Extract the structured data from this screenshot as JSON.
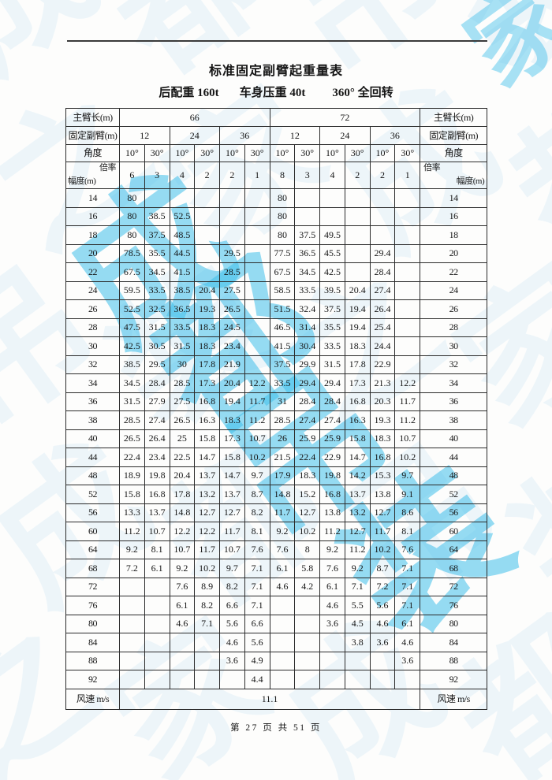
{
  "page": {
    "title": "标准固定副臂起重量表",
    "subtitle_parts": [
      "后配重 160t",
      "车身压重 40t",
      "360° 全回转"
    ],
    "footer": "第 27 页 共 51 页"
  },
  "watermark": {
    "bright_chars": [
      "成",
      "都",
      "吊",
      "装"
    ],
    "corner_char": "家",
    "faint_phrase": "成都吊装之家",
    "bright_color": "#41c0eb",
    "faint_color": "#7dc3eb"
  },
  "table": {
    "labels": {
      "main_boom": "主臂长(m)",
      "fixed_jib": "固定副臂(m)",
      "angle": "角度",
      "ratio": "倍率",
      "radius": "幅度(m)",
      "wind": "风速 m/s"
    },
    "boom_lengths": [
      "66",
      "72"
    ],
    "jib_lengths": [
      "12",
      "24",
      "36",
      "12",
      "24",
      "36"
    ],
    "angles": [
      "10°",
      "30°",
      "10°",
      "30°",
      "10°",
      "30°",
      "10°",
      "30°",
      "10°",
      "30°",
      "10°",
      "30°"
    ],
    "ratios": [
      "6",
      "3",
      "4",
      "2",
      "2",
      "1",
      "8",
      "3",
      "4",
      "2",
      "2",
      "1"
    ],
    "wind_speed": "11.1",
    "rows": [
      {
        "radius": "14",
        "values": [
          "80",
          "",
          "",
          "",
          "",
          "",
          "80",
          "",
          "",
          "",
          "",
          ""
        ]
      },
      {
        "radius": "16",
        "values": [
          "80",
          "38.5",
          "52.5",
          "",
          "",
          "",
          "80",
          "",
          "",
          "",
          "",
          ""
        ]
      },
      {
        "radius": "18",
        "values": [
          "80",
          "37.5",
          "48.5",
          "",
          "",
          "",
          "80",
          "37.5",
          "49.5",
          "",
          "",
          ""
        ]
      },
      {
        "radius": "20",
        "values": [
          "78.5",
          "35.5",
          "44.5",
          "",
          "29.5",
          "",
          "77.5",
          "36.5",
          "45.5",
          "",
          "29.4",
          ""
        ]
      },
      {
        "radius": "22",
        "values": [
          "67.5",
          "34.5",
          "41.5",
          "",
          "28.5",
          "",
          "67.5",
          "34.5",
          "42.5",
          "",
          "28.4",
          ""
        ]
      },
      {
        "radius": "24",
        "values": [
          "59.5",
          "33.5",
          "38.5",
          "20.4",
          "27.5",
          "",
          "58.5",
          "33.5",
          "39.5",
          "20.4",
          "27.4",
          ""
        ]
      },
      {
        "radius": "26",
        "values": [
          "52.5",
          "32.5",
          "36.5",
          "19.3",
          "26.5",
          "",
          "51.5",
          "32.4",
          "37.5",
          "19.4",
          "26.4",
          ""
        ]
      },
      {
        "radius": "28",
        "values": [
          "47.5",
          "31.5",
          "33.5",
          "18.3",
          "24.5",
          "",
          "46.5",
          "31.4",
          "35.5",
          "19.4",
          "25.4",
          ""
        ]
      },
      {
        "radius": "30",
        "values": [
          "42.5",
          "30.5",
          "31.5",
          "18.3",
          "23.4",
          "",
          "41.5",
          "30.4",
          "33.5",
          "18.3",
          "24.4",
          ""
        ]
      },
      {
        "radius": "32",
        "values": [
          "38.5",
          "29.5",
          "30",
          "17.8",
          "21.9",
          "",
          "37.5",
          "29.9",
          "31.5",
          "17.8",
          "22.9",
          ""
        ]
      },
      {
        "radius": "34",
        "values": [
          "34.5",
          "28.4",
          "28.5",
          "17.3",
          "20.4",
          "12.2",
          "33.5",
          "29.4",
          "29.4",
          "17.3",
          "21.3",
          "12.2"
        ]
      },
      {
        "radius": "36",
        "values": [
          "31.5",
          "27.9",
          "27.5",
          "16.8",
          "19.4",
          "11.7",
          "31",
          "28.4",
          "28.4",
          "16.8",
          "20.3",
          "11.7"
        ]
      },
      {
        "radius": "38",
        "values": [
          "28.5",
          "27.4",
          "26.5",
          "16.3",
          "18.3",
          "11.2",
          "28.5",
          "27.4",
          "27.4",
          "16.3",
          "19.3",
          "11.2"
        ]
      },
      {
        "radius": "40",
        "values": [
          "26.5",
          "26.4",
          "25",
          "15.8",
          "17.3",
          "10.7",
          "26",
          "25.9",
          "25.9",
          "15.8",
          "18.3",
          "10.7"
        ]
      },
      {
        "radius": "44",
        "values": [
          "22.4",
          "23.4",
          "22.5",
          "14.7",
          "15.8",
          "10.2",
          "21.5",
          "22.4",
          "22.9",
          "14.7",
          "16.8",
          "10.2"
        ]
      },
      {
        "radius": "48",
        "values": [
          "18.9",
          "19.8",
          "20.4",
          "13.7",
          "14.7",
          "9.7",
          "17.9",
          "18.3",
          "19.8",
          "14.2",
          "15.3",
          "9.7"
        ]
      },
      {
        "radius": "52",
        "values": [
          "15.8",
          "16.8",
          "17.8",
          "13.2",
          "13.7",
          "8.7",
          "14.8",
          "15.2",
          "16.8",
          "13.7",
          "13.8",
          "9.1"
        ]
      },
      {
        "radius": "56",
        "values": [
          "13.3",
          "13.7",
          "14.8",
          "12.7",
          "12.7",
          "8.2",
          "11.7",
          "12.7",
          "13.8",
          "13.2",
          "12.7",
          "8.6"
        ]
      },
      {
        "radius": "60",
        "values": [
          "11.2",
          "10.7",
          "12.2",
          "12.2",
          "11.7",
          "8.1",
          "9.2",
          "10.2",
          "11.2",
          "12.7",
          "11.7",
          "8.1"
        ]
      },
      {
        "radius": "64",
        "values": [
          "9.2",
          "8.1",
          "10.7",
          "11.7",
          "10.7",
          "7.6",
          "7.6",
          "8",
          "9.2",
          "11.2",
          "10.2",
          "7.6"
        ]
      },
      {
        "radius": "68",
        "values": [
          "7.2",
          "6.1",
          "9.2",
          "10.2",
          "9.7",
          "7.1",
          "6.1",
          "5.8",
          "7.6",
          "9.2",
          "8.7",
          "7.1"
        ]
      },
      {
        "radius": "72",
        "values": [
          "",
          "",
          "7.6",
          "8.9",
          "8.2",
          "7.1",
          "4.6",
          "4.2",
          "6.1",
          "7.1",
          "7.2",
          "7.1"
        ]
      },
      {
        "radius": "76",
        "values": [
          "",
          "",
          "6.1",
          "8.2",
          "6.6",
          "7.1",
          "",
          "",
          "4.6",
          "5.5",
          "5.6",
          "7.1"
        ]
      },
      {
        "radius": "80",
        "values": [
          "",
          "",
          "4.6",
          "7.1",
          "5.6",
          "6.6",
          "",
          "",
          "3.6",
          "4.5",
          "4.6",
          "6.1"
        ]
      },
      {
        "radius": "84",
        "values": [
          "",
          "",
          "",
          "",
          "4.6",
          "5.6",
          "",
          "",
          "",
          "3.8",
          "3.6",
          "4.6"
        ]
      },
      {
        "radius": "88",
        "values": [
          "",
          "",
          "",
          "",
          "3.6",
          "4.9",
          "",
          "",
          "",
          "",
          "",
          "3.6"
        ]
      },
      {
        "radius": "92",
        "values": [
          "",
          "",
          "",
          "",
          "",
          "4.4",
          "",
          "",
          "",
          "",
          "",
          ""
        ]
      }
    ]
  }
}
